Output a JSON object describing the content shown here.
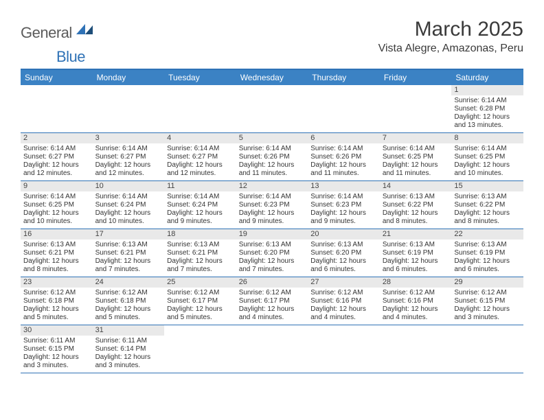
{
  "logo": {
    "part1": "General",
    "part2": "Blue"
  },
  "title": "March 2025",
  "location": "Vista Alegre, Amazonas, Peru",
  "colors": {
    "header_bg": "#3b82c4",
    "divider": "#2f72b6",
    "daynum_bg": "#e9e9e9",
    "logo_gray": "#5b5b5b",
    "logo_blue": "#2f72b6"
  },
  "weekdays": [
    "Sunday",
    "Monday",
    "Tuesday",
    "Wednesday",
    "Thursday",
    "Friday",
    "Saturday"
  ],
  "weeks": [
    [
      null,
      null,
      null,
      null,
      null,
      null,
      {
        "n": "1",
        "sunrise": "Sunrise: 6:14 AM",
        "sunset": "Sunset: 6:28 PM",
        "day": "Daylight: 12 hours and 13 minutes."
      }
    ],
    [
      {
        "n": "2",
        "sunrise": "Sunrise: 6:14 AM",
        "sunset": "Sunset: 6:27 PM",
        "day": "Daylight: 12 hours and 12 minutes."
      },
      {
        "n": "3",
        "sunrise": "Sunrise: 6:14 AM",
        "sunset": "Sunset: 6:27 PM",
        "day": "Daylight: 12 hours and 12 minutes."
      },
      {
        "n": "4",
        "sunrise": "Sunrise: 6:14 AM",
        "sunset": "Sunset: 6:27 PM",
        "day": "Daylight: 12 hours and 12 minutes."
      },
      {
        "n": "5",
        "sunrise": "Sunrise: 6:14 AM",
        "sunset": "Sunset: 6:26 PM",
        "day": "Daylight: 12 hours and 11 minutes."
      },
      {
        "n": "6",
        "sunrise": "Sunrise: 6:14 AM",
        "sunset": "Sunset: 6:26 PM",
        "day": "Daylight: 12 hours and 11 minutes."
      },
      {
        "n": "7",
        "sunrise": "Sunrise: 6:14 AM",
        "sunset": "Sunset: 6:25 PM",
        "day": "Daylight: 12 hours and 11 minutes."
      },
      {
        "n": "8",
        "sunrise": "Sunrise: 6:14 AM",
        "sunset": "Sunset: 6:25 PM",
        "day": "Daylight: 12 hours and 10 minutes."
      }
    ],
    [
      {
        "n": "9",
        "sunrise": "Sunrise: 6:14 AM",
        "sunset": "Sunset: 6:25 PM",
        "day": "Daylight: 12 hours and 10 minutes."
      },
      {
        "n": "10",
        "sunrise": "Sunrise: 6:14 AM",
        "sunset": "Sunset: 6:24 PM",
        "day": "Daylight: 12 hours and 10 minutes."
      },
      {
        "n": "11",
        "sunrise": "Sunrise: 6:14 AM",
        "sunset": "Sunset: 6:24 PM",
        "day": "Daylight: 12 hours and 9 minutes."
      },
      {
        "n": "12",
        "sunrise": "Sunrise: 6:14 AM",
        "sunset": "Sunset: 6:23 PM",
        "day": "Daylight: 12 hours and 9 minutes."
      },
      {
        "n": "13",
        "sunrise": "Sunrise: 6:14 AM",
        "sunset": "Sunset: 6:23 PM",
        "day": "Daylight: 12 hours and 9 minutes."
      },
      {
        "n": "14",
        "sunrise": "Sunrise: 6:13 AM",
        "sunset": "Sunset: 6:22 PM",
        "day": "Daylight: 12 hours and 8 minutes."
      },
      {
        "n": "15",
        "sunrise": "Sunrise: 6:13 AM",
        "sunset": "Sunset: 6:22 PM",
        "day": "Daylight: 12 hours and 8 minutes."
      }
    ],
    [
      {
        "n": "16",
        "sunrise": "Sunrise: 6:13 AM",
        "sunset": "Sunset: 6:21 PM",
        "day": "Daylight: 12 hours and 8 minutes."
      },
      {
        "n": "17",
        "sunrise": "Sunrise: 6:13 AM",
        "sunset": "Sunset: 6:21 PM",
        "day": "Daylight: 12 hours and 7 minutes."
      },
      {
        "n": "18",
        "sunrise": "Sunrise: 6:13 AM",
        "sunset": "Sunset: 6:21 PM",
        "day": "Daylight: 12 hours and 7 minutes."
      },
      {
        "n": "19",
        "sunrise": "Sunrise: 6:13 AM",
        "sunset": "Sunset: 6:20 PM",
        "day": "Daylight: 12 hours and 7 minutes."
      },
      {
        "n": "20",
        "sunrise": "Sunrise: 6:13 AM",
        "sunset": "Sunset: 6:20 PM",
        "day": "Daylight: 12 hours and 6 minutes."
      },
      {
        "n": "21",
        "sunrise": "Sunrise: 6:13 AM",
        "sunset": "Sunset: 6:19 PM",
        "day": "Daylight: 12 hours and 6 minutes."
      },
      {
        "n": "22",
        "sunrise": "Sunrise: 6:13 AM",
        "sunset": "Sunset: 6:19 PM",
        "day": "Daylight: 12 hours and 6 minutes."
      }
    ],
    [
      {
        "n": "23",
        "sunrise": "Sunrise: 6:12 AM",
        "sunset": "Sunset: 6:18 PM",
        "day": "Daylight: 12 hours and 5 minutes."
      },
      {
        "n": "24",
        "sunrise": "Sunrise: 6:12 AM",
        "sunset": "Sunset: 6:18 PM",
        "day": "Daylight: 12 hours and 5 minutes."
      },
      {
        "n": "25",
        "sunrise": "Sunrise: 6:12 AM",
        "sunset": "Sunset: 6:17 PM",
        "day": "Daylight: 12 hours and 5 minutes."
      },
      {
        "n": "26",
        "sunrise": "Sunrise: 6:12 AM",
        "sunset": "Sunset: 6:17 PM",
        "day": "Daylight: 12 hours and 4 minutes."
      },
      {
        "n": "27",
        "sunrise": "Sunrise: 6:12 AM",
        "sunset": "Sunset: 6:16 PM",
        "day": "Daylight: 12 hours and 4 minutes."
      },
      {
        "n": "28",
        "sunrise": "Sunrise: 6:12 AM",
        "sunset": "Sunset: 6:16 PM",
        "day": "Daylight: 12 hours and 4 minutes."
      },
      {
        "n": "29",
        "sunrise": "Sunrise: 6:12 AM",
        "sunset": "Sunset: 6:15 PM",
        "day": "Daylight: 12 hours and 3 minutes."
      }
    ],
    [
      {
        "n": "30",
        "sunrise": "Sunrise: 6:11 AM",
        "sunset": "Sunset: 6:15 PM",
        "day": "Daylight: 12 hours and 3 minutes."
      },
      {
        "n": "31",
        "sunrise": "Sunrise: 6:11 AM",
        "sunset": "Sunset: 6:14 PM",
        "day": "Daylight: 12 hours and 3 minutes."
      },
      null,
      null,
      null,
      null,
      null
    ]
  ]
}
